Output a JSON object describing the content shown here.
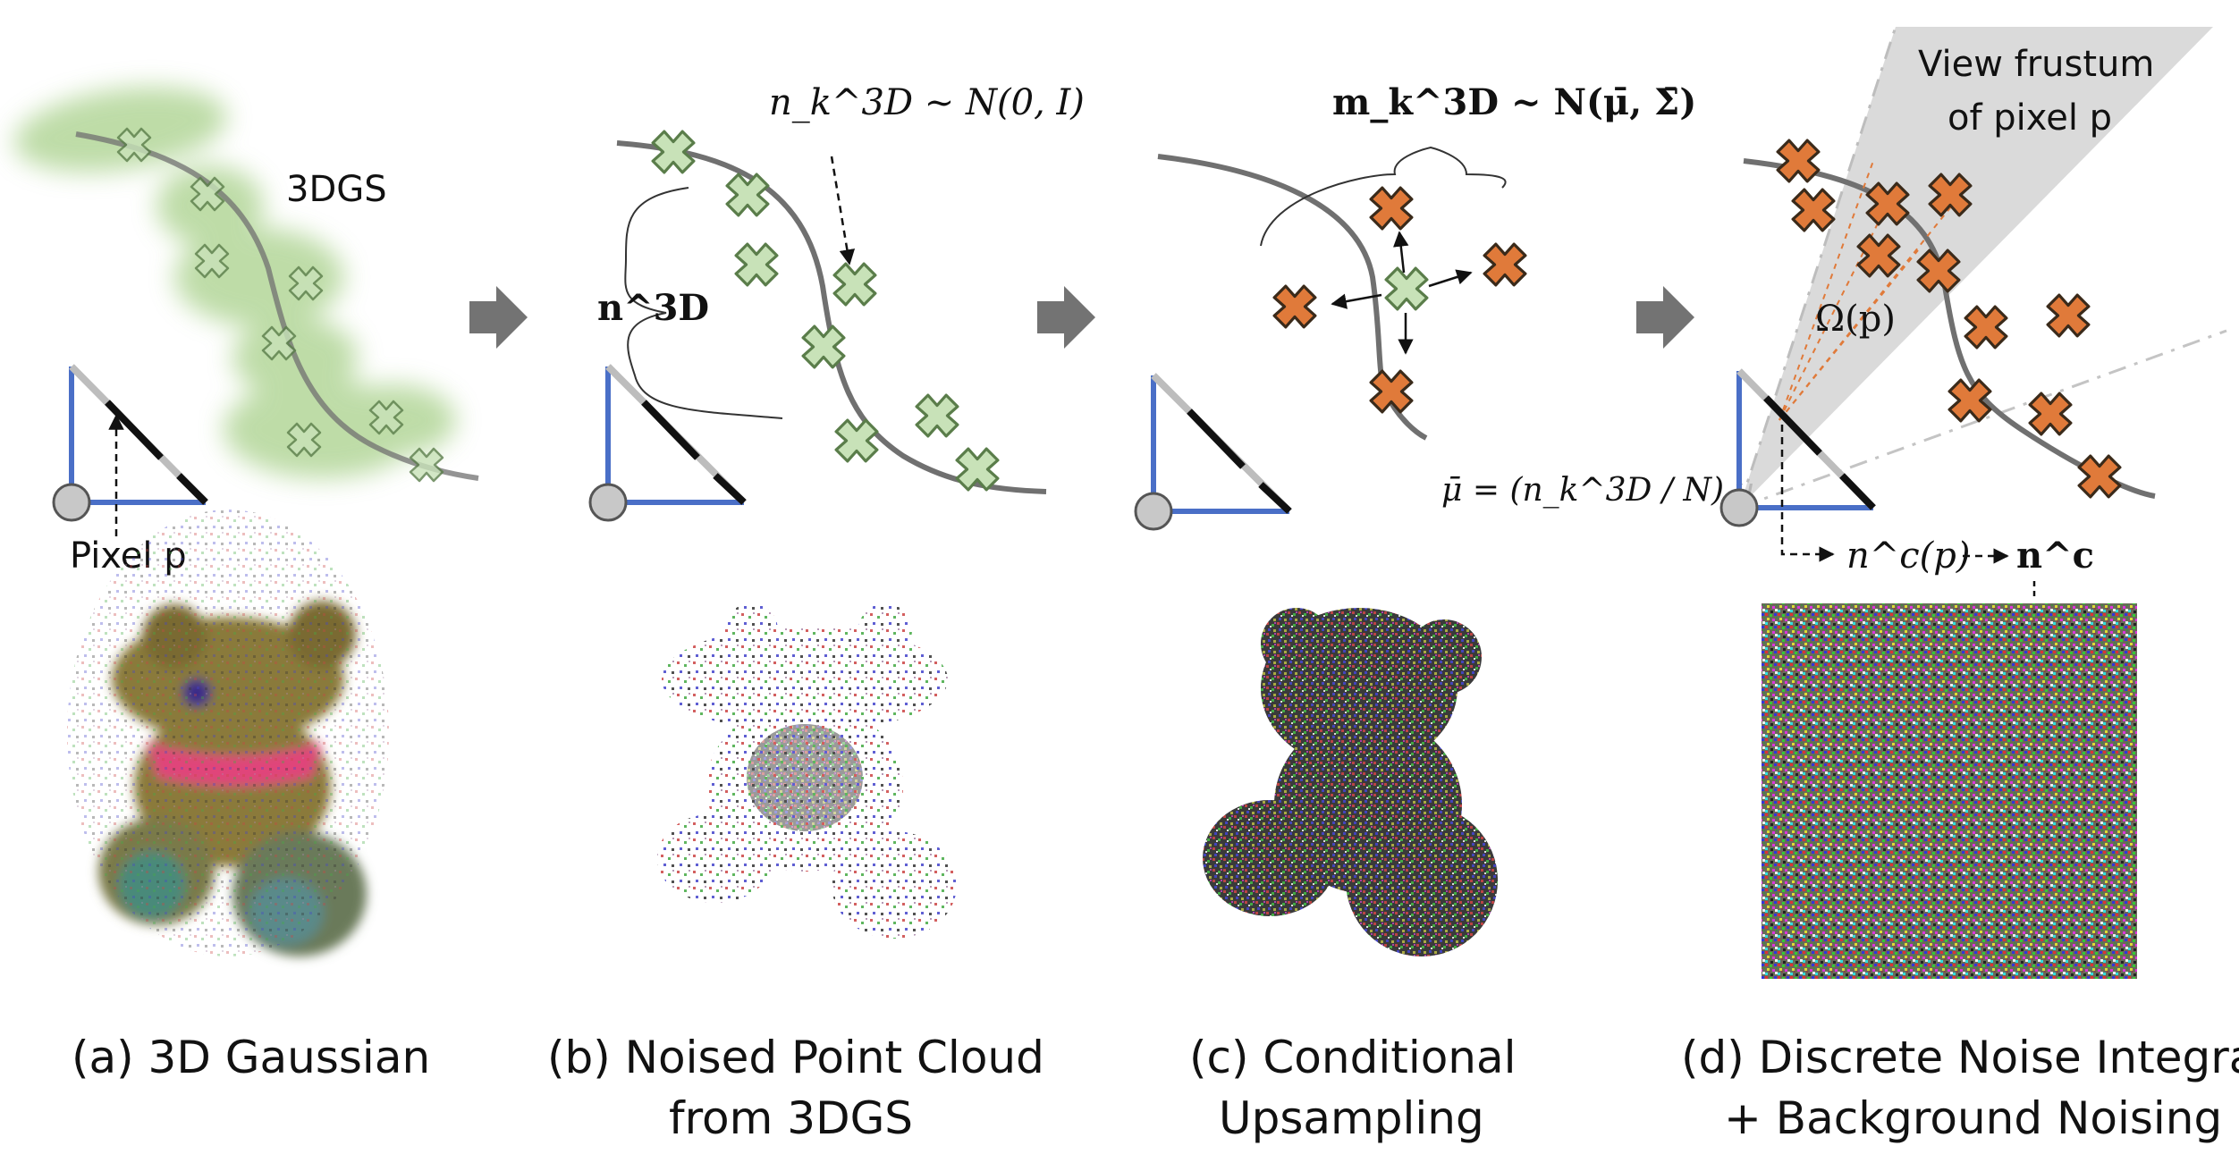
{
  "panels": {
    "a": {
      "caption_lines": [
        "(a) 3D Gaussian"
      ],
      "label_3dgs": "3DGS",
      "label_pixel": "Pixel p"
    },
    "b": {
      "caption_lines": [
        "(b) Noised Point Cloud",
        "from 3DGS"
      ],
      "formula_nk": "n_k^3D ~ N(0, I)",
      "label_n3d": "n^3D"
    },
    "c": {
      "caption_lines": [
        "(c) Conditional",
        "Upsampling"
      ],
      "formula_mk": "m_k^3D ~ N(μ̄, Σ̄)",
      "formula_mu": "μ̄ = (n_k^3D / N) u"
    },
    "d": {
      "caption_lines": [
        "(d) Discrete Noise Integral",
        "+ Background Noising"
      ],
      "label_frustum_lines": [
        "View frustum",
        "of pixel p"
      ],
      "label_omega": "Ω(p)",
      "label_ncp": "n^c(p)",
      "label_nc": "n^c"
    }
  },
  "colors": {
    "green_fill": "#c8e2b8",
    "green_stroke": "#5a7d4a",
    "orange_fill": "#e07a3a",
    "orange_stroke": "#3a2a1a",
    "curve": "#707070",
    "arrow": "#737373",
    "camera_blue": "#4a6fc7",
    "bear_body": "#8a7a3a",
    "bow": "#e0457a"
  }
}
